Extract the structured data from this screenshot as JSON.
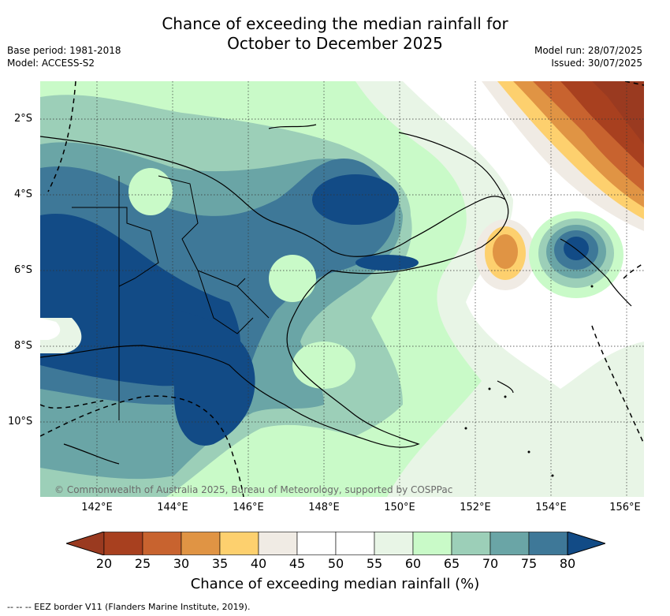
{
  "title_line1": "Chance of exceeding the median rainfall for",
  "title_line2": "October to December 2025",
  "base_period": "Base period: 1981-2018",
  "model": "Model: ACCESS-S2",
  "model_run": "Model run: 28/07/2025",
  "issued": "Issued: 30/07/2025",
  "lat_labels": [
    "2°S",
    "4°S",
    "6°S",
    "8°S",
    "10°S"
  ],
  "lon_labels": [
    "142°E",
    "144°E",
    "146°E",
    "148°E",
    "150°E",
    "152°E",
    "154°E",
    "156°E"
  ],
  "copyright": "© Commonwealth of Australia 2025, Bureau of Meteorology, supported by COSPPac",
  "colorbar": {
    "ticks": [
      "20",
      "25",
      "30",
      "35",
      "40",
      "45",
      "50",
      "55",
      "60",
      "65",
      "70",
      "75",
      "80"
    ],
    "colors": [
      "#a8401f",
      "#c8632f",
      "#e09444",
      "#fdd06e",
      "#f0ebe4",
      "#ffffff",
      "#ffffff",
      "#e8f5e6",
      "#c9fac8",
      "#9ccfb8",
      "#6aa5a6",
      "#3e7898"
    ],
    "under_color": "#9a3a20",
    "over_color": "#124b86",
    "label": "Chance of exceeding median rainfall (%)"
  },
  "footer": "--  --  -- EEZ border V11 (Flanders Marine Institute, 2019)."
}
